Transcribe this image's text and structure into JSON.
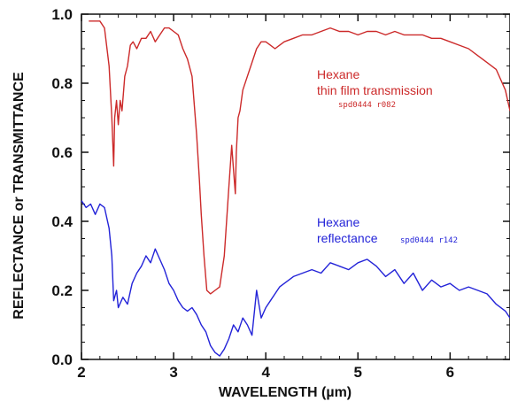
{
  "chart_data": {
    "type": "line",
    "xlabel": "WAVELENGTH (µm)",
    "ylabel": "REFLECTANCE or TRANSMITTANCE",
    "xlim": [
      2.0,
      6.65
    ],
    "ylim": [
      0.0,
      1.0
    ],
    "xticks": [
      "2",
      "3",
      "4",
      "5",
      "6"
    ],
    "yticks": [
      "0.0",
      "0.2",
      "0.4",
      "0.6",
      "0.8",
      "1.0"
    ],
    "grid": false,
    "series": [
      {
        "name": "Hexane thin film transmission",
        "label_lines": [
          "Hexane",
          "thin film transmission"
        ],
        "spectrum_id": "spd0444 r082",
        "color": "#cc2a2a",
        "x": [
          2.08,
          2.2,
          2.25,
          2.3,
          2.33,
          2.35,
          2.36,
          2.38,
          2.4,
          2.42,
          2.44,
          2.47,
          2.5,
          2.53,
          2.56,
          2.6,
          2.65,
          2.7,
          2.75,
          2.8,
          2.85,
          2.9,
          2.95,
          3.0,
          3.05,
          3.1,
          3.15,
          3.2,
          3.25,
          3.28,
          3.3,
          3.33,
          3.36,
          3.4,
          3.45,
          3.5,
          3.55,
          3.6,
          3.63,
          3.65,
          3.67,
          3.68,
          3.7,
          3.72,
          3.75,
          3.8,
          3.85,
          3.9,
          3.95,
          4.0,
          4.05,
          4.1,
          4.15,
          4.2,
          4.3,
          4.4,
          4.5,
          4.6,
          4.7,
          4.8,
          4.9,
          5.0,
          5.1,
          5.2,
          5.3,
          5.4,
          5.5,
          5.6,
          5.7,
          5.8,
          5.9,
          6.0,
          6.1,
          6.2,
          6.3,
          6.4,
          6.5,
          6.6,
          6.65
        ],
        "y": [
          0.98,
          0.98,
          0.96,
          0.85,
          0.7,
          0.56,
          0.7,
          0.75,
          0.68,
          0.75,
          0.72,
          0.82,
          0.85,
          0.91,
          0.92,
          0.9,
          0.93,
          0.93,
          0.95,
          0.92,
          0.94,
          0.96,
          0.96,
          0.95,
          0.94,
          0.9,
          0.87,
          0.82,
          0.65,
          0.52,
          0.42,
          0.3,
          0.2,
          0.19,
          0.2,
          0.21,
          0.3,
          0.5,
          0.62,
          0.55,
          0.48,
          0.6,
          0.7,
          0.72,
          0.78,
          0.82,
          0.86,
          0.9,
          0.92,
          0.92,
          0.91,
          0.9,
          0.91,
          0.92,
          0.93,
          0.94,
          0.94,
          0.95,
          0.96,
          0.95,
          0.95,
          0.94,
          0.95,
          0.95,
          0.94,
          0.95,
          0.94,
          0.94,
          0.94,
          0.93,
          0.93,
          0.92,
          0.91,
          0.9,
          0.88,
          0.86,
          0.84,
          0.78,
          0.72
        ]
      },
      {
        "name": "Hexane reflectance",
        "label_lines": [
          "Hexane",
          "reflectance"
        ],
        "spectrum_id": "spd0444 r142",
        "color": "#2323d8",
        "x": [
          2.0,
          2.05,
          2.1,
          2.15,
          2.2,
          2.25,
          2.3,
          2.33,
          2.35,
          2.38,
          2.4,
          2.45,
          2.5,
          2.55,
          2.6,
          2.65,
          2.7,
          2.75,
          2.8,
          2.85,
          2.9,
          2.95,
          3.0,
          3.05,
          3.1,
          3.15,
          3.2,
          3.25,
          3.3,
          3.35,
          3.4,
          3.45,
          3.5,
          3.55,
          3.6,
          3.65,
          3.7,
          3.75,
          3.8,
          3.85,
          3.9,
          3.95,
          4.0,
          4.05,
          4.1,
          4.15,
          4.2,
          4.3,
          4.4,
          4.5,
          4.6,
          4.7,
          4.8,
          4.9,
          5.0,
          5.1,
          5.2,
          5.3,
          5.4,
          5.5,
          5.6,
          5.7,
          5.8,
          5.9,
          6.0,
          6.1,
          6.2,
          6.3,
          6.4,
          6.5,
          6.6,
          6.65
        ],
        "y": [
          0.46,
          0.44,
          0.45,
          0.42,
          0.45,
          0.44,
          0.38,
          0.3,
          0.17,
          0.2,
          0.15,
          0.18,
          0.16,
          0.22,
          0.25,
          0.27,
          0.3,
          0.28,
          0.32,
          0.29,
          0.26,
          0.22,
          0.2,
          0.17,
          0.15,
          0.14,
          0.15,
          0.13,
          0.1,
          0.08,
          0.04,
          0.02,
          0.01,
          0.03,
          0.06,
          0.1,
          0.08,
          0.12,
          0.1,
          0.07,
          0.2,
          0.12,
          0.15,
          0.17,
          0.19,
          0.21,
          0.22,
          0.24,
          0.25,
          0.26,
          0.25,
          0.28,
          0.27,
          0.26,
          0.28,
          0.29,
          0.27,
          0.24,
          0.26,
          0.22,
          0.25,
          0.2,
          0.23,
          0.21,
          0.22,
          0.2,
          0.21,
          0.2,
          0.19,
          0.16,
          0.14,
          0.12
        ]
      }
    ]
  }
}
